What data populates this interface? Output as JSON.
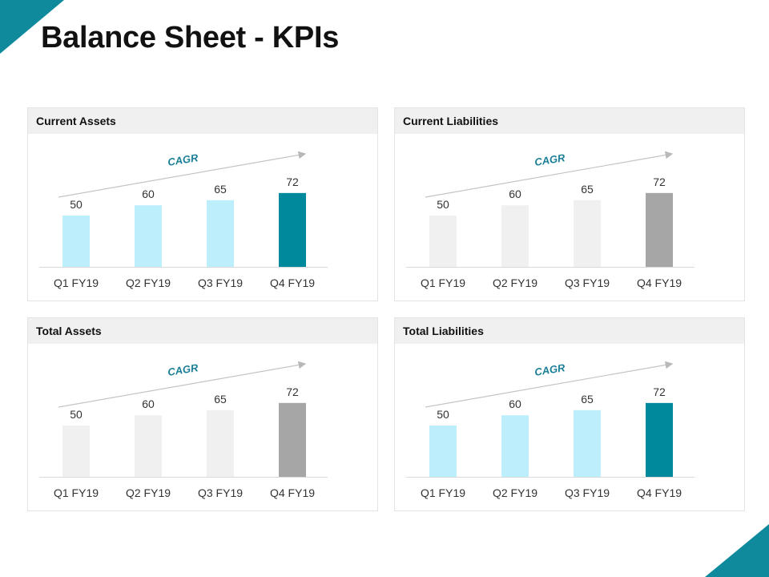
{
  "page": {
    "title": "Balance Sheet - KPIs",
    "accent_color": "#0f8a9d"
  },
  "chart_data": [
    {
      "type": "bar",
      "title": "Current Assets",
      "categories": [
        "Q1 FY19",
        "Q2 FY19",
        "Q3 FY19",
        "Q4 FY19"
      ],
      "values": [
        50,
        60,
        65,
        72
      ],
      "colors": [
        "#bdeefc",
        "#bdeefc",
        "#bdeefc",
        "#00889c"
      ],
      "annotation": "CAGR",
      "annotation_color": "#1a7f96"
    },
    {
      "type": "bar",
      "title": "Current Liabilities",
      "categories": [
        "Q1 FY19",
        "Q2 FY19",
        "Q3 FY19",
        "Q4 FY19"
      ],
      "values": [
        50,
        60,
        65,
        72
      ],
      "colors": [
        "#f0f0f0",
        "#f0f0f0",
        "#f0f0f0",
        "#a6a6a6"
      ],
      "annotation": "CAGR",
      "annotation_color": "#1a7f96"
    },
    {
      "type": "bar",
      "title": "Total Assets",
      "categories": [
        "Q1 FY19",
        "Q2 FY19",
        "Q3 FY19",
        "Q4 FY19"
      ],
      "values": [
        50,
        60,
        65,
        72
      ],
      "colors": [
        "#f0f0f0",
        "#f0f0f0",
        "#f0f0f0",
        "#a6a6a6"
      ],
      "annotation": "CAGR",
      "annotation_color": "#1a7f96"
    },
    {
      "type": "bar",
      "title": "Total Liabilities",
      "categories": [
        "Q1 FY19",
        "Q2 FY19",
        "Q3 FY19",
        "Q4 FY19"
      ],
      "values": [
        50,
        60,
        65,
        72
      ],
      "colors": [
        "#bdeefc",
        "#bdeefc",
        "#bdeefc",
        "#00889c"
      ],
      "annotation": "CAGR",
      "annotation_color": "#1a7f96"
    }
  ]
}
